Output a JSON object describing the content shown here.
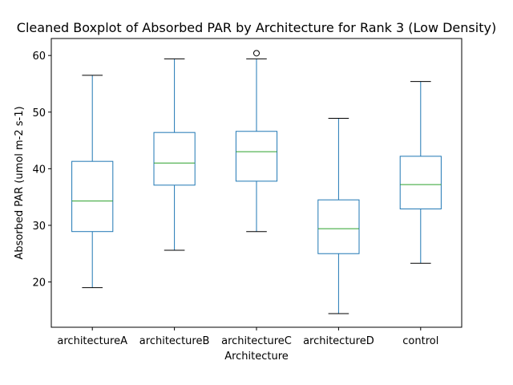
{
  "chart_data": {
    "type": "boxplot",
    "title": "Cleaned Boxplot of Absorbed PAR by Architecture for Rank 3 (Low Density)",
    "xlabel": "Architecture",
    "ylabel": "Absorbed PAR (umol m-2 s-1)",
    "ylim": [
      12,
      63
    ],
    "yticks": [
      20,
      30,
      40,
      50,
      60
    ],
    "grid": false,
    "categories": [
      "architectureA",
      "architectureB",
      "architectureC",
      "architectureD",
      "control"
    ],
    "boxes": [
      {
        "category": "architectureA",
        "whisker_low": 19.0,
        "q1": 28.9,
        "median": 34.3,
        "q3": 41.3,
        "whisker_high": 56.5,
        "outliers": []
      },
      {
        "category": "architectureB",
        "whisker_low": 25.6,
        "q1": 37.1,
        "median": 41.0,
        "q3": 46.4,
        "whisker_high": 59.4,
        "outliers": []
      },
      {
        "category": "architectureC",
        "whisker_low": 28.9,
        "q1": 37.8,
        "median": 43.0,
        "q3": 46.6,
        "whisker_high": 59.4,
        "outliers": [
          60.4
        ]
      },
      {
        "category": "architectureD",
        "whisker_low": 14.4,
        "q1": 25.0,
        "median": 29.4,
        "q3": 34.5,
        "whisker_high": 48.9,
        "outliers": []
      },
      {
        "category": "control",
        "whisker_low": 23.3,
        "q1": 32.9,
        "median": 37.2,
        "q3": 42.2,
        "whisker_high": 55.4,
        "outliers": []
      }
    ],
    "colors": {
      "box": "#1f77b4",
      "median": "#2ca02c",
      "whisker": "#1f77b4",
      "cap": "#000000",
      "outlier": "#000000"
    }
  }
}
